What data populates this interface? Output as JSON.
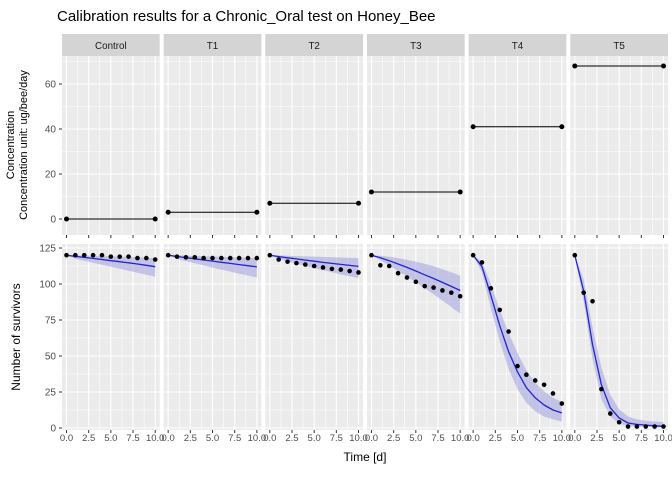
{
  "colors": {
    "background": "#ffffff",
    "panel_bg": "#ebebeb",
    "strip_bg": "#d4d4d4",
    "grid": "#ffffff",
    "prediction_line": "#2424cd",
    "credible_band": "#9a9adf",
    "observed_point": "#000000",
    "concentration_line": "#000000",
    "axis_text": "#4d4d4d",
    "strip_text": "#1a1a1a",
    "tick_mark": "#333333"
  },
  "chart_data": {
    "type": "line",
    "title": "Calibration results for a Chronic_Oral test on Honey_Bee",
    "xlabel": "Time [d]",
    "facets": [
      "Control",
      "T1",
      "T2",
      "T3",
      "T4",
      "T5"
    ],
    "x": [
      0,
      1,
      2,
      3,
      4,
      5,
      6,
      7,
      8,
      9,
      10
    ],
    "x_ticks": [
      0,
      2.5,
      5,
      7.5,
      10
    ],
    "x_tick_labels": [
      "0.0",
      "2.5",
      "5.0",
      "7.5",
      "10.0"
    ],
    "x_minor_ticks": [
      1.25,
      3.75,
      6.25,
      8.75
    ],
    "grid": true,
    "legend_position": "none",
    "top_row": {
      "ylabel_line1": "Concentration",
      "ylabel_line2": "Concentration unit: ug/bee/day",
      "ylim": [
        -7,
        72.5
      ],
      "yticks": [
        0,
        20,
        40,
        60
      ],
      "ytick_labels": [
        "0",
        "20",
        "40",
        "60"
      ],
      "yminor": [
        10,
        30,
        50,
        70
      ],
      "concentration_by_facet": [
        0,
        3,
        7,
        12,
        41,
        68
      ]
    },
    "bottom_row": {
      "ylabel": "Number of survivors",
      "ylim": [
        -2,
        128
      ],
      "yticks": [
        0,
        25,
        50,
        75,
        100,
        125
      ],
      "ytick_labels": [
        "0",
        "25",
        "50",
        "75",
        "100",
        "125"
      ],
      "yminor": [
        12.5,
        37.5,
        62.5,
        87.5,
        112.5
      ],
      "series": [
        {
          "facet": "Control",
          "observed": [
            120,
            120,
            120,
            120,
            120,
            119,
            119,
            119,
            118,
            118,
            117
          ],
          "predicted": [
            120,
            119.2,
            118.5,
            117.8,
            117,
            116.2,
            115.5,
            114.7,
            113.9,
            113,
            112
          ],
          "ci_lower": [
            120,
            117.6,
            116.2,
            114.8,
            113.4,
            112,
            110.6,
            109.2,
            107.8,
            106.4,
            105
          ],
          "ci_upper": [
            120,
            120,
            119.8,
            119.6,
            119.4,
            119.2,
            119,
            118.8,
            118.6,
            118.3,
            118
          ]
        },
        {
          "facet": "T1",
          "observed": [
            120,
            119,
            118.5,
            118.5,
            118,
            118,
            118,
            118,
            118,
            118,
            118
          ],
          "predicted": [
            120,
            119.1,
            118.3,
            117.5,
            116.7,
            115.9,
            115.1,
            114.3,
            113.5,
            112.7,
            111.9
          ],
          "ci_lower": [
            120,
            117.4,
            115.9,
            114.4,
            112.9,
            111.4,
            110,
            108.6,
            107.2,
            105.8,
            104.5
          ],
          "ci_upper": [
            120,
            119.9,
            119.7,
            119.5,
            119.3,
            119.1,
            118.9,
            118.7,
            118.5,
            118.2,
            118
          ]
        },
        {
          "facet": "T2",
          "observed": [
            120,
            117,
            115.5,
            114.5,
            113.5,
            112.5,
            111.5,
            110.5,
            110,
            109,
            108
          ],
          "predicted": [
            120,
            119,
            118.2,
            117.4,
            116.6,
            115.8,
            115,
            114.3,
            113.6,
            112.9,
            112.2
          ],
          "ci_lower": [
            120,
            117.4,
            115.7,
            114.1,
            112.5,
            111,
            109.5,
            108.1,
            106.7,
            105.4,
            104.2
          ],
          "ci_upper": [
            120,
            119.9,
            119.6,
            119.4,
            119.2,
            119,
            118.8,
            118.6,
            118.4,
            118.2,
            118
          ]
        },
        {
          "facet": "T3",
          "observed": [
            120,
            113,
            112.5,
            107.5,
            104.5,
            101.5,
            98.5,
            97.5,
            95.5,
            94,
            91.5
          ],
          "predicted": [
            120,
            118.2,
            116.2,
            113.9,
            111.5,
            109,
            106.4,
            103.8,
            101.1,
            98.3,
            95.5
          ],
          "ci_lower": [
            120,
            116.5,
            112.8,
            109,
            105.2,
            101.2,
            97.1,
            92.9,
            88.5,
            84,
            79.5
          ],
          "ci_upper": [
            120,
            119.6,
            118.9,
            118,
            116.8,
            115.5,
            114,
            112.3,
            110.3,
            108.1,
            105.8
          ]
        },
        {
          "facet": "T4",
          "observed": [
            120,
            115,
            97,
            82,
            67,
            43,
            37,
            33,
            30,
            24,
            17
          ],
          "predicted": [
            120,
            112,
            92,
            71,
            53,
            39,
            28,
            21,
            16,
            12.5,
            10.5
          ],
          "ci_lower": [
            120,
            108,
            83,
            60,
            41,
            27,
            17.5,
            11.5,
            8,
            6,
            4.5
          ],
          "ci_upper": [
            120,
            115.5,
            100,
            82,
            66,
            52,
            40,
            31.5,
            25.5,
            21,
            18
          ]
        },
        {
          "facet": "T5",
          "observed": [
            120,
            94,
            88,
            27,
            10,
            4,
            1,
            1,
            1,
            1,
            1
          ],
          "predicted": [
            120,
            95,
            58,
            30,
            14,
            7,
            3.5,
            2.5,
            2,
            1.5,
            1.2
          ],
          "ci_lower": [
            120,
            88,
            48,
            20,
            8,
            3,
            1.5,
            1,
            0.8,
            0.6,
            0.5
          ],
          "ci_upper": [
            120,
            103,
            70,
            42,
            23,
            13,
            8,
            6,
            5,
            4.5,
            4.2
          ]
        }
      ]
    }
  }
}
